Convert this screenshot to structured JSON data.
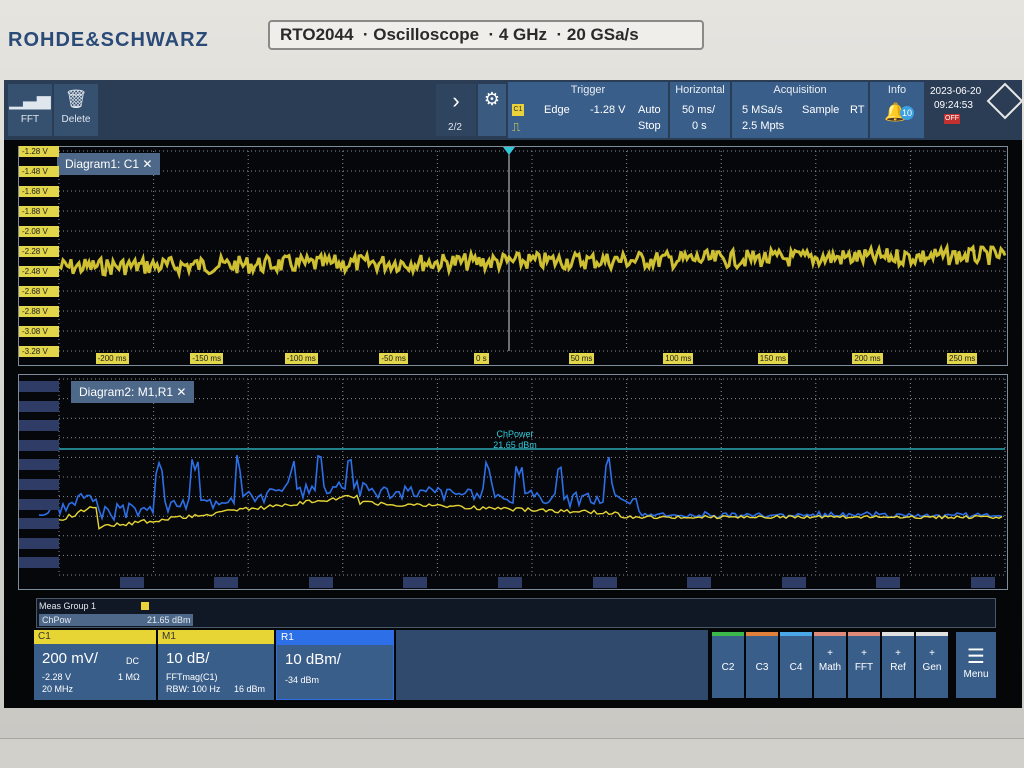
{
  "device": {
    "brand": "ROHDE&SCHWARZ",
    "model_line": "RTO2044  · Oscilloscope  · 4 GHz  · 20 GSa/s"
  },
  "toolbar": {
    "fft_label": "FFT",
    "delete_label": "Delete",
    "page": "2/2",
    "trigger": {
      "title": "Trigger",
      "type": "Edge",
      "level": "-1.28 V",
      "mode": "Auto",
      "state": "Stop",
      "source_chip": "C1"
    },
    "horizontal": {
      "title": "Horizontal",
      "scale": "50 ms/",
      "position": "0 s"
    },
    "acquisition": {
      "title": "Acquisition",
      "rate": "5 MSa/s",
      "points": "2.5 Mpts",
      "mode": "Sample",
      "rt": "RT"
    },
    "info": {
      "title": "Info",
      "count": "10"
    },
    "clock": {
      "date": "2023-06-20",
      "time": "09:24:53",
      "flag": "OFF"
    }
  },
  "diagram1": {
    "tab": "Diagram1: C1",
    "y_labels": [
      "-1.28 V",
      "-1.48 V",
      "-1.68 V",
      "-1.88 V",
      "-2.08 V",
      "-2.28 V",
      "-2.48 V",
      "-2.68 V",
      "-2.88 V",
      "-3.08 V",
      "-3.28 V"
    ],
    "x_labels": [
      "-200 ms",
      "-150 ms",
      "-100 ms",
      "-50 ms",
      "0 s",
      "50 ms",
      "100 ms",
      "150 ms",
      "200 ms",
      "250 ms"
    ]
  },
  "diagram2": {
    "tab": "Diagram2: M1,R1",
    "cursor_label": "ChPower",
    "cursor_value": "21.65 dBm"
  },
  "meas": {
    "header": "Meas Group 1",
    "name": "ChPow",
    "value": "21.65 dBm"
  },
  "channels": {
    "c1": {
      "name": "C1",
      "scale": "200 mV/",
      "coupling": "DC",
      "offset": "-2.28 V",
      "impedance": "1 MΩ",
      "bw": "20 MHz",
      "color": "#e6d535"
    },
    "m1": {
      "name": "M1",
      "scale": "10 dB/",
      "source": "FFTmag(C1)",
      "rbw": "RBW: 100 Hz",
      "ref": "16 dBm",
      "color": "#e6d535"
    },
    "r1": {
      "name": "R1",
      "scale": "10 dBm/",
      "offset": "-34 dBm",
      "color": "#2d6fe6"
    }
  },
  "side_buttons": {
    "c2": "C2",
    "c3": "C3",
    "c4": "C4",
    "math_plus": "+",
    "math": "Math",
    "fft_plus": "+",
    "fft": "FFT",
    "ref_plus": "+",
    "ref": "Ref",
    "gen_plus": "+",
    "gen": "Gen",
    "menu": "Menu"
  },
  "colors": {
    "trace_yellow": "#e6d535",
    "trace_blue": "#2d6fe6",
    "cursor_cyan": "#32c8d8",
    "panel_blue": "#3a5e8a"
  },
  "icons": {
    "fft": "fft-bars-icon",
    "delete": "trash-icon",
    "next": "chevron-right-icon",
    "gear": "gear-icon",
    "info": "bell-icon",
    "menu": "hamburger-icon"
  }
}
